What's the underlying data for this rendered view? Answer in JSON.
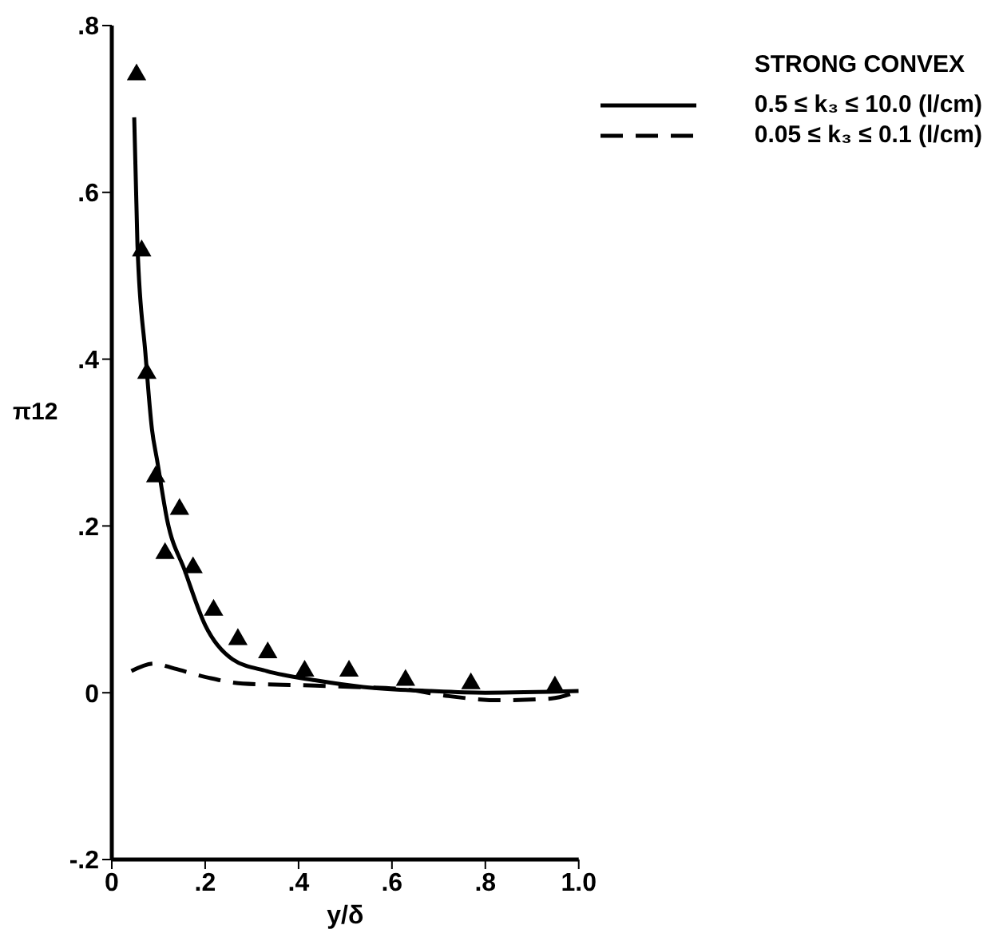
{
  "chart_data": {
    "type": "line",
    "xlabel": "y/δ",
    "ylabel": "π12",
    "legend_title": "STRONG CONVEX",
    "legend": "top right",
    "xlim": [
      0,
      1.0
    ],
    "ylim": [
      -0.2,
      0.8
    ],
    "xticks": [
      0,
      {
        "value": 0.2,
        "label": ".2"
      },
      {
        "value": 0.4,
        "label": ".4"
      },
      {
        "value": 0.6,
        "label": ".6"
      },
      {
        "value": 0.8,
        "label": ".8"
      },
      {
        "value": 1.0,
        "label": "1.0"
      }
    ],
    "yticks": [
      {
        "value": -0.2,
        "label": "-.2"
      },
      0,
      {
        "value": 0.2,
        "label": ".2"
      },
      {
        "value": 0.4,
        "label": ".4"
      },
      {
        "value": 0.6,
        "label": ".6"
      },
      {
        "value": 0.8,
        "label": ".8"
      }
    ],
    "grid": false,
    "series": [
      {
        "name": "0.5 ≤ k₃ ≤ 10.0 (l/cm)",
        "color": "#000000",
        "line_style": "solid",
        "marker": "none",
        "x": [
          0.048,
          0.055,
          0.072,
          0.086,
          0.097,
          0.119,
          0.156,
          0.2,
          0.259,
          0.332,
          0.435,
          0.538,
          0.684,
          0.8,
          1.0
        ],
        "values": [
          0.69,
          0.536,
          0.407,
          0.316,
          0.279,
          0.206,
          0.147,
          0.081,
          0.04,
          0.026,
          0.015,
          0.007,
          0.002,
          0.0,
          0.002
        ]
      },
      {
        "name": "0.05 ≤ k₃ ≤ 0.1 (l/cm)",
        "color": "#000000",
        "line_style": "dashed",
        "marker": "none",
        "x": [
          0.042,
          0.09,
          0.134,
          0.207,
          0.281,
          0.41,
          0.52,
          0.63,
          0.721,
          0.831,
          0.94,
          1.0
        ],
        "values": [
          0.026,
          0.035,
          0.029,
          0.018,
          0.011,
          0.009,
          0.007,
          0.004,
          -0.004,
          -0.009,
          -0.007,
          0.002
        ]
      },
      {
        "type": "scatter",
        "color": "#000000",
        "marker": "triangle",
        "x": [
          0.053,
          0.064,
          0.075,
          0.094,
          0.114,
          0.145,
          0.174,
          0.218,
          0.27,
          0.334,
          0.413,
          0.508,
          0.629,
          0.769,
          0.949
        ],
        "values": [
          0.741,
          0.53,
          0.383,
          0.259,
          0.167,
          0.22,
          0.15,
          0.099,
          0.064,
          0.048,
          0.026,
          0.026,
          0.015,
          0.011,
          0.007
        ]
      }
    ]
  }
}
